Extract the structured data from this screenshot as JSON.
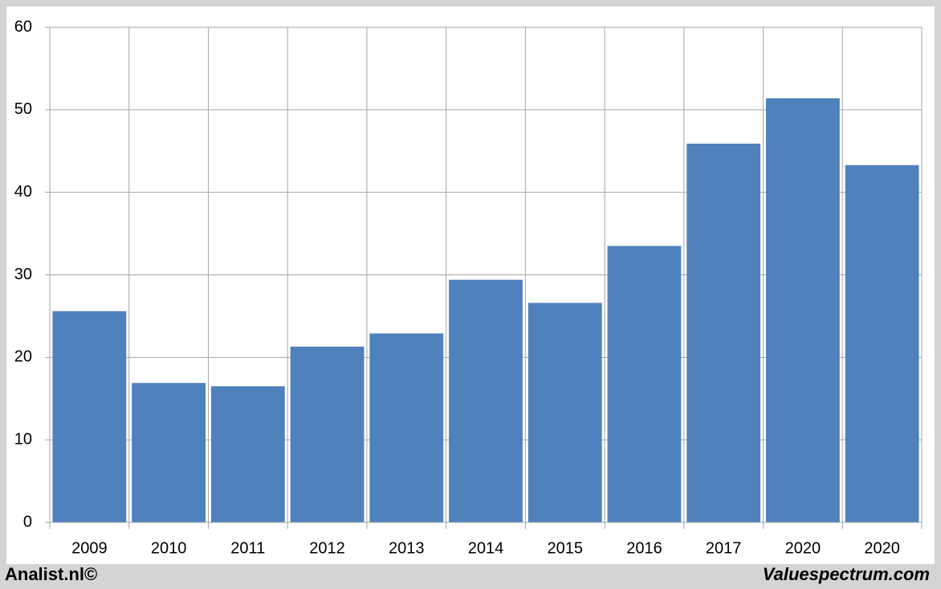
{
  "chart_data": {
    "type": "bar",
    "categories": [
      "2009",
      "2010",
      "2011",
      "2012",
      "2013",
      "2014",
      "2015",
      "2016",
      "2017",
      "2020",
      "2020"
    ],
    "values": [
      25.6,
      16.9,
      16.5,
      21.3,
      22.9,
      29.4,
      26.6,
      33.5,
      45.9,
      51.4,
      43.3
    ],
    "color": "#4f81bd",
    "ylim": [
      0,
      60
    ],
    "yticks": [
      0,
      10,
      20,
      30,
      40,
      50,
      60
    ],
    "grid": true
  },
  "footer": {
    "left": "Analist.nl©",
    "right": "Valuespectrum.com"
  }
}
